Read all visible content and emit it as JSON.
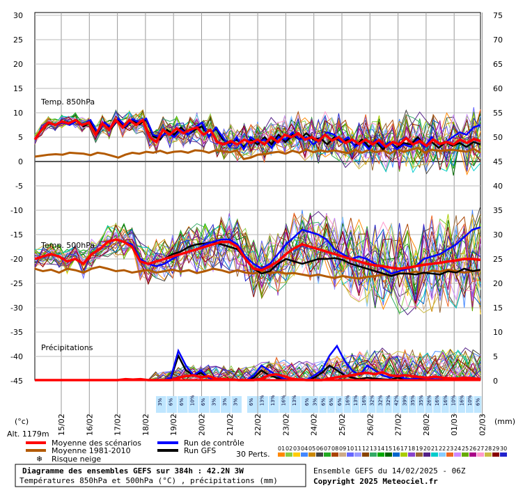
{
  "chart_data": {
    "type": "line",
    "left_axis_ticks": [
      "30",
      "25",
      "20",
      "15",
      "10",
      "5",
      "0",
      "-5",
      "-10",
      "-15",
      "-20",
      "-25",
      "-30",
      "-35",
      "-40",
      "-45"
    ],
    "right_axis_ticks": [
      "75",
      "70",
      "65",
      "60",
      "55",
      "50",
      "45",
      "40",
      "35",
      "30",
      "25",
      "20",
      "15",
      "10",
      "5",
      "0"
    ],
    "left_unit": "(°c)",
    "right_unit": "(mm)",
    "altitude": "Alt. 1179m",
    "x_dates": [
      "15/02",
      "16/02",
      "17/02",
      "18/02",
      "19/02",
      "20/02",
      "21/02",
      "22/02",
      "23/02",
      "24/02",
      "25/02",
      "26/02",
      "27/02",
      "28/02",
      "01/03",
      "02/03"
    ],
    "panel_labels": {
      "t850": "Temp. 850hPa",
      "t500": "Temp. 500hPa",
      "precip": "Précipitations"
    },
    "snow_risk": [
      {
        "group": 1,
        "values": [
          "3%",
          "6%",
          "6%",
          "10%",
          "6%",
          "3%",
          "3%",
          "3%"
        ]
      },
      {
        "group": 2,
        "values": [
          "6%",
          "13%",
          "13%",
          "16%",
          "13%",
          "6%"
        ]
      },
      {
        "group": 3,
        "values": [
          "6%",
          "3%",
          "6%",
          "6%",
          "6%",
          "16%",
          "13%",
          "16%",
          "32%",
          "32%",
          "32%",
          "42%",
          "39%",
          "35%",
          "35%",
          "26%",
          "16%",
          "16%",
          "10%",
          "16%",
          "10%",
          "6%"
        ]
      }
    ],
    "series": [
      {
        "name": "Moyenne des scénarios",
        "color": "#ff0000",
        "t850": [
          4.5,
          6.5,
          8,
          7.5,
          8.2,
          7.8,
          8.5,
          7.5,
          8,
          5.5,
          7.8,
          6.5,
          8.5,
          7,
          8.5,
          7.5,
          8.5,
          5,
          4,
          6.5,
          5.5,
          6.8,
          5.8,
          6.5,
          7,
          5.5,
          6.5,
          4,
          3.5,
          4.2,
          3.5,
          4.5,
          3.8,
          4.5,
          3.5,
          5,
          4,
          5.5,
          5,
          5.8,
          4.5,
          5,
          4.2,
          5.5,
          4.3,
          5,
          3.8,
          4.5,
          3.6,
          4.5,
          3.5,
          4.4,
          3,
          4,
          3.5,
          4.8,
          3.5,
          4.2,
          3.2,
          4.5,
          3.6,
          4,
          3.5,
          4.5,
          3.8,
          4.6,
          4.2
        ],
        "t500": [
          -20,
          -19.5,
          -19,
          -19.5,
          -20.5,
          -20,
          -21,
          -19,
          -18,
          -16.5,
          -16,
          -16.5,
          -17.5,
          -20.5,
          -21,
          -20.5,
          -20,
          -19.5,
          -19,
          -18.5,
          -18,
          -17.5,
          -17,
          -16.5,
          -16.5,
          -17.5,
          -20,
          -22,
          -22.3,
          -21.5,
          -20.5,
          -19,
          -17.8,
          -17,
          -17.5,
          -18,
          -18.5,
          -19,
          -19.5,
          -20,
          -20.5,
          -21,
          -21.3,
          -21.5,
          -21.8,
          -22,
          -21.8,
          -21.5,
          -21.2,
          -21,
          -20.8,
          -20.5,
          -20.3,
          -20,
          -20,
          -20.2
        ],
        "precip": [
          0,
          0,
          0,
          0,
          0,
          0,
          0,
          0,
          0,
          0,
          0,
          0,
          0.2,
          0.1,
          0.2,
          0,
          0,
          0,
          0,
          0.5,
          0.8,
          1,
          0.6,
          0.8,
          0.3,
          0.2,
          0.1,
          0,
          0,
          0,
          0.3,
          1,
          1.2,
          0.8,
          0.3,
          0.1,
          0,
          0,
          0,
          0.3,
          0.6,
          0.8,
          1,
          1.3,
          1.5,
          1.2,
          1.6,
          1,
          0.8,
          1,
          0.8,
          0.6,
          0.5,
          0.7,
          0.5,
          0.4,
          0.3,
          0.5,
          0.4,
          0.2
        ]
      },
      {
        "name": "Moyenne 1981-2010",
        "color": "#b35a00",
        "t850": [
          1,
          1.2,
          1.4,
          1.5,
          1.4,
          1.8,
          1.7,
          1.6,
          1.3,
          1.8,
          1.6,
          1.2,
          0.8,
          1.4,
          1.8,
          1.6,
          2,
          1.8,
          2.2,
          1.7,
          2,
          2.1,
          1.8,
          2.3,
          2.2,
          1.8,
          2.3,
          2.1,
          1.9,
          2.3,
          0.5,
          0.8,
          1.4,
          1.5,
          1.8,
          2,
          1.6,
          2.2,
          1.8,
          2.5,
          1.9,
          2.3,
          2,
          2.3,
          2,
          1.7,
          2.4,
          1.8,
          2.4,
          1.9,
          2.3,
          1.6,
          2.5,
          2,
          2.4,
          2.8,
          1.8,
          2.4,
          2.2,
          2.3,
          2.4,
          2.2,
          2,
          2.6,
          1.8
        ],
        "t500": [
          -22,
          -22.5,
          -22.2,
          -22.8,
          -22,
          -22.3,
          -22.8,
          -22,
          -21.6,
          -22,
          -22.5,
          -22.3,
          -22.8,
          -22.5,
          -22.3,
          -22.8,
          -22.5,
          -22.2,
          -22.6,
          -22.3,
          -22.9,
          -22.5,
          -22,
          -22.3,
          -22.8,
          -22.3,
          -22.8,
          -23,
          -22.5,
          -22.9,
          -22.7,
          -23,
          -22.9,
          -23.2,
          -23.5,
          -23.2,
          -23.6,
          -23.9,
          -23.5,
          -23.8,
          -24,
          -23.7,
          -23.5,
          -23.2,
          -23.5,
          -22.9,
          -23,
          -22.6,
          -23,
          -22.4,
          -22.6,
          -22.2,
          -22.5,
          -22.8,
          -22.5,
          -22.4
        ]
      },
      {
        "name": "Run de contrôle",
        "color": "#0000ff",
        "t850": [
          4.5,
          6.8,
          8,
          7.5,
          8,
          7.5,
          8.3,
          7.5,
          8.5,
          6,
          8,
          7,
          8.8,
          7.2,
          8.7,
          8,
          8.8,
          5.5,
          5,
          6,
          5,
          6.5,
          5.5,
          7,
          8,
          5,
          7,
          5,
          3,
          5,
          2.5,
          5,
          4,
          4.5,
          2.8,
          5,
          4.5,
          6,
          4.5,
          5,
          3.5,
          4.8,
          6,
          5.5,
          4,
          5,
          3,
          4,
          2.5,
          4.5,
          3,
          4,
          2.5,
          3.5,
          3,
          4.5,
          3,
          5,
          3.5,
          4,
          5,
          6,
          5.5,
          7,
          7.5
        ],
        "t500": [
          -20,
          -19.5,
          -19,
          -19.5,
          -20.5,
          -20,
          -21,
          -19,
          -18,
          -16.5,
          -16,
          -16.5,
          -17,
          -20,
          -21,
          -21.5,
          -21,
          -20,
          -19,
          -18.5,
          -18,
          -17,
          -16.5,
          -16,
          -16,
          -17,
          -19.5,
          -21,
          -22,
          -21,
          -19,
          -17,
          -15.5,
          -14,
          -14.5,
          -15,
          -16,
          -18,
          -19,
          -20,
          -19.5,
          -20,
          -21,
          -22,
          -23,
          -22.5,
          -22,
          -21.5,
          -20,
          -19.5,
          -19,
          -18,
          -17,
          -15.5,
          -14,
          -13.5
        ],
        "precip": [
          0,
          0,
          0,
          0,
          0,
          0,
          0,
          0,
          0,
          0,
          0,
          0,
          0.2,
          0,
          0,
          0,
          0,
          0,
          0.5,
          6,
          3,
          1,
          2,
          0.5,
          0.2,
          0,
          0,
          0,
          0,
          1,
          3,
          2,
          1,
          0.2,
          0,
          0,
          0,
          1,
          2,
          5,
          7,
          4,
          2,
          1,
          3,
          2,
          1,
          0.5,
          1,
          0.3,
          0.2,
          0.5,
          0.3,
          0.2,
          0.1,
          0.3,
          0.2,
          0.2,
          0.1,
          0
        ]
      },
      {
        "name": "Run GFS",
        "color": "#000000",
        "t850": [
          4.5,
          6.7,
          7.8,
          7.5,
          8,
          7.7,
          8.5,
          7.2,
          8.2,
          5.8,
          8,
          6.8,
          8.6,
          7,
          8.5,
          7.6,
          8.6,
          5.2,
          4.5,
          6.5,
          5.5,
          7,
          5.5,
          6.5,
          7.2,
          5.2,
          6.8,
          4.5,
          3.8,
          4.5,
          3,
          4.5,
          3.5,
          5,
          3.5,
          5.5,
          4,
          5.5,
          4.5,
          5.8,
          4.5,
          4.8,
          3.5,
          5,
          4,
          4.5,
          3.2,
          4.5,
          3,
          4,
          2.5,
          4,
          2.8,
          3.8,
          3.5,
          5,
          3.2,
          4,
          2.8,
          4,
          3.2,
          3.8,
          3,
          4,
          3.5
        ],
        "t500": [
          -20,
          -19.5,
          -19,
          -19.5,
          -20.5,
          -20,
          -21,
          -19,
          -18,
          -16.5,
          -16,
          -16.5,
          -17.5,
          -20.5,
          -21,
          -20.5,
          -20,
          -19,
          -18.5,
          -17.5,
          -17,
          -16.8,
          -16.5,
          -17,
          -17.5,
          -18,
          -20,
          -22,
          -23,
          -22.5,
          -21,
          -20,
          -20.5,
          -21,
          -20.5,
          -20,
          -20,
          -19.8,
          -20.2,
          -21,
          -21.5,
          -22,
          -22.5,
          -23,
          -23.5,
          -23,
          -23,
          -23.2,
          -22.8,
          -23,
          -23.2,
          -22.5,
          -22.8,
          -22,
          -22.5,
          -22.2
        ],
        "precip": [
          0,
          0,
          0,
          0,
          0,
          0,
          0,
          0,
          0,
          0,
          0,
          0,
          0,
          0,
          0,
          0,
          0,
          0,
          0.3,
          5,
          2,
          1,
          1.5,
          0.5,
          0.2,
          0,
          0,
          0,
          0,
          0.5,
          2,
          1,
          0.5,
          0,
          0,
          0,
          0,
          0.5,
          1.5,
          3,
          2,
          1,
          0.5,
          0.2,
          0.5,
          0.3,
          0.2,
          0.1,
          0.5,
          0.2,
          0.1,
          0.2,
          0.1,
          0,
          0,
          0.1,
          0,
          0,
          0,
          0
        ]
      }
    ],
    "perturbation_colors": [
      "#ff8800",
      "#88cc44",
      "#ffcc00",
      "#4488ff",
      "#cc8800",
      "#444444",
      "#22aa22",
      "#aa4400",
      "#ccaa88",
      "#6666ff",
      "#9999ff",
      "#884400",
      "#33aa66",
      "#00aa00",
      "#006600",
      "#0066cc",
      "#aacc00",
      "#8844cc",
      "#996633",
      "#552288",
      "#00cccc",
      "#88ccff",
      "#ee6622",
      "#cc88ff",
      "#66aa00",
      "#aa0088",
      "#ff99cc",
      "#ccbb44",
      "#880000",
      "#2222cc"
    ],
    "perturbation_numbers": [
      "01",
      "02",
      "03",
      "04",
      "05",
      "06",
      "07",
      "08",
      "09",
      "10",
      "11",
      "12",
      "13",
      "14",
      "15",
      "16",
      "17",
      "18",
      "19",
      "20",
      "21",
      "22",
      "23",
      "24",
      "25",
      "26",
      "27",
      "28",
      "29",
      "30"
    ]
  },
  "legend": {
    "mean": "Moyenne des scénarios",
    "climate": "Moyenne 1981-2010",
    "snow": "Risque neige",
    "control": "Run de contrôle",
    "gfs": "Run GFS",
    "perts": "30 Perts."
  },
  "footer": {
    "title": "Diagramme des ensembles GEFS sur 384h : 42.2N 3W",
    "subtitle": "Températures 850hPa et 500hPa (°C) , précipitations (mm)",
    "ensemble": "Ensemble GEFS du 14/02/2025 - 06Z",
    "copyright": "Copyright 2025 Meteociel.fr"
  }
}
